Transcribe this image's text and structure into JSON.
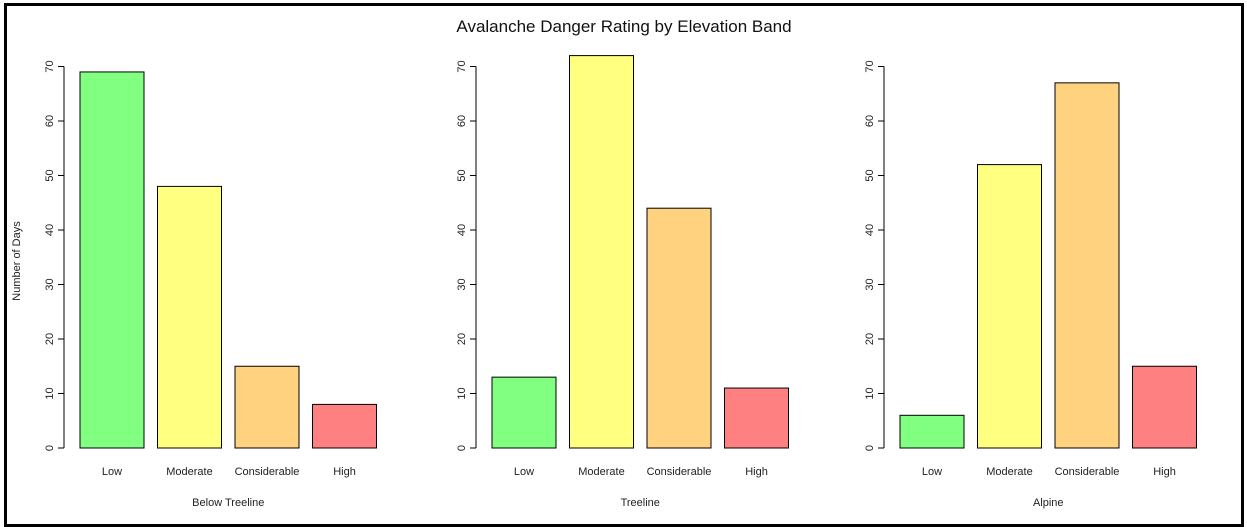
{
  "figure": {
    "title": "Avalanche Danger Rating by Elevation Band"
  },
  "colors": {
    "Low": "#80ff80",
    "Moderate": "#ffff80",
    "Considerable": "#ffd280",
    "High": "#ff8080"
  },
  "chart_data": [
    {
      "type": "bar",
      "categories": [
        "Low",
        "Moderate",
        "Considerable",
        "High"
      ],
      "values": [
        69,
        48,
        15,
        8
      ],
      "xlabel": "Below Treeline",
      "ylabel": "Number of Days",
      "yticks": [
        0,
        10,
        20,
        30,
        40,
        50,
        60,
        70
      ],
      "ylim": [
        0,
        72
      ],
      "grid": false
    },
    {
      "type": "bar",
      "categories": [
        "Low",
        "Moderate",
        "Considerable",
        "High"
      ],
      "values": [
        13,
        72,
        44,
        11
      ],
      "xlabel": "Treeline",
      "ylabel": "",
      "yticks": [
        0,
        10,
        20,
        30,
        40,
        50,
        60,
        70
      ],
      "ylim": [
        0,
        72
      ],
      "grid": false
    },
    {
      "type": "bar",
      "categories": [
        "Low",
        "Moderate",
        "Considerable",
        "High"
      ],
      "values": [
        6,
        52,
        67,
        15
      ],
      "xlabel": "Alpine",
      "ylabel": "",
      "yticks": [
        0,
        10,
        20,
        30,
        40,
        50,
        60,
        70
      ],
      "ylim": [
        0,
        72
      ],
      "grid": false
    }
  ]
}
